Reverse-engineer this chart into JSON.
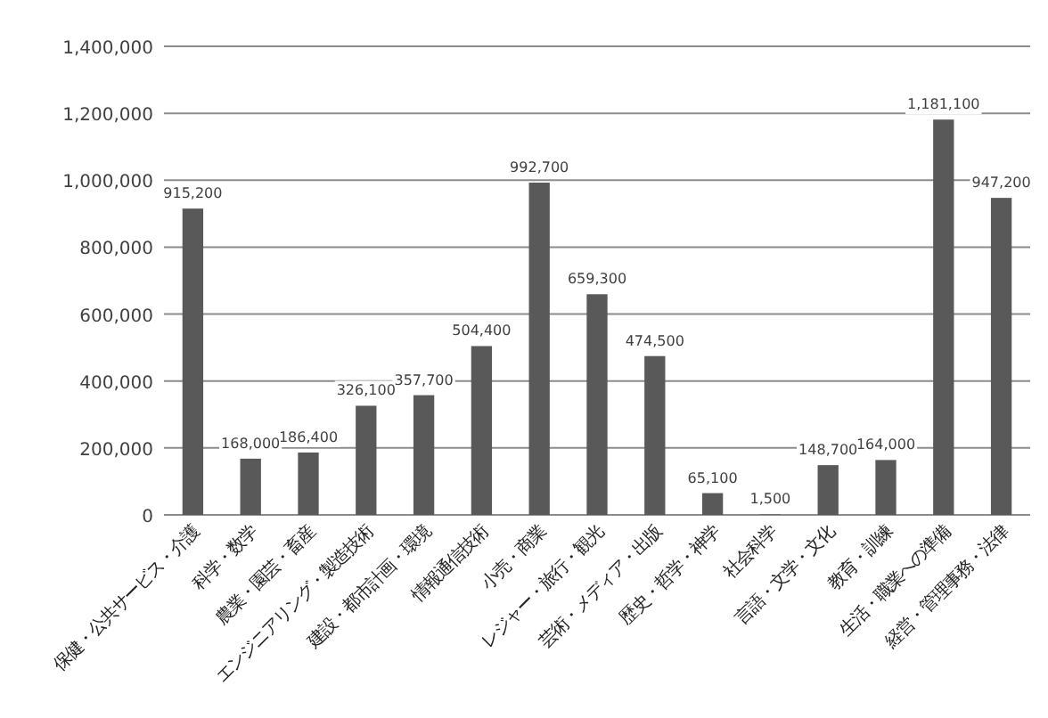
{
  "chart_data": {
    "type": "bar",
    "categories": [
      "保健・公共サービス・介護",
      "科学・数学",
      "農業・園芸・畜産",
      "エンジニアリング・製造技術",
      "建設・都市計画・環境",
      "情報通信技術",
      "小売・商業",
      "レジャー・旅行・観光",
      "芸術・メディア・出版",
      "歴史・哲学・神学",
      "社会科学",
      "言語・文学・文化",
      "教育・訓練",
      "生活・職業への準備",
      "経営・管理事務・法律"
    ],
    "values": [
      915200,
      168000,
      186400,
      326100,
      357700,
      504400,
      992700,
      659300,
      474500,
      65100,
      1500,
      148700,
      164000,
      1181100,
      947200
    ],
    "color": "#595959",
    "ylim": [
      0,
      1400000
    ],
    "yticks": [
      {
        "value": 0,
        "label": "0"
      },
      {
        "value": 200000,
        "label": "200,000"
      },
      {
        "value": 400000,
        "label": "400,000"
      },
      {
        "value": 600000,
        "label": "600,000"
      },
      {
        "value": 800000,
        "label": "800,000"
      },
      {
        "value": 1000000,
        "label": "1,000,000"
      },
      {
        "value": 1200000,
        "label": "1,200,000"
      },
      {
        "value": 1400000,
        "label": "1,400,000"
      }
    ],
    "value_labels": [
      "915,200",
      "168,000",
      "186,400",
      "326,100",
      "357,700",
      "504,400",
      "992,700",
      "659,300",
      "474,500",
      "65,100",
      "1,500",
      "148,700",
      "164,000",
      "1,181,100",
      "947,200"
    ],
    "grid": "y"
  }
}
